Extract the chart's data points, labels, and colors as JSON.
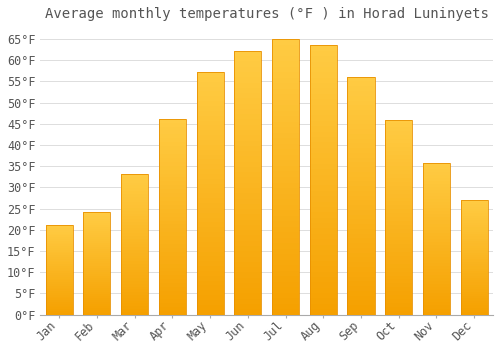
{
  "title": "Average monthly temperatures (°F ) in Horad Luninyets",
  "months": [
    "Jan",
    "Feb",
    "Mar",
    "Apr",
    "May",
    "Jun",
    "Jul",
    "Aug",
    "Sep",
    "Oct",
    "Nov",
    "Dec"
  ],
  "values": [
    21.2,
    24.1,
    33.1,
    46.2,
    57.2,
    62.2,
    64.9,
    63.5,
    56.1,
    46.0,
    35.8,
    27.1
  ],
  "bar_color_top": "#FFCC44",
  "bar_color_bottom": "#F5A000",
  "bar_edge_color": "#E89000",
  "background_color": "#FFFFFF",
  "grid_color": "#DDDDDD",
  "text_color": "#555555",
  "ylim": [
    0,
    68
  ],
  "yticks": [
    0,
    5,
    10,
    15,
    20,
    25,
    30,
    35,
    40,
    45,
    50,
    55,
    60,
    65
  ],
  "title_fontsize": 10,
  "tick_fontsize": 8.5,
  "font_family": "monospace"
}
